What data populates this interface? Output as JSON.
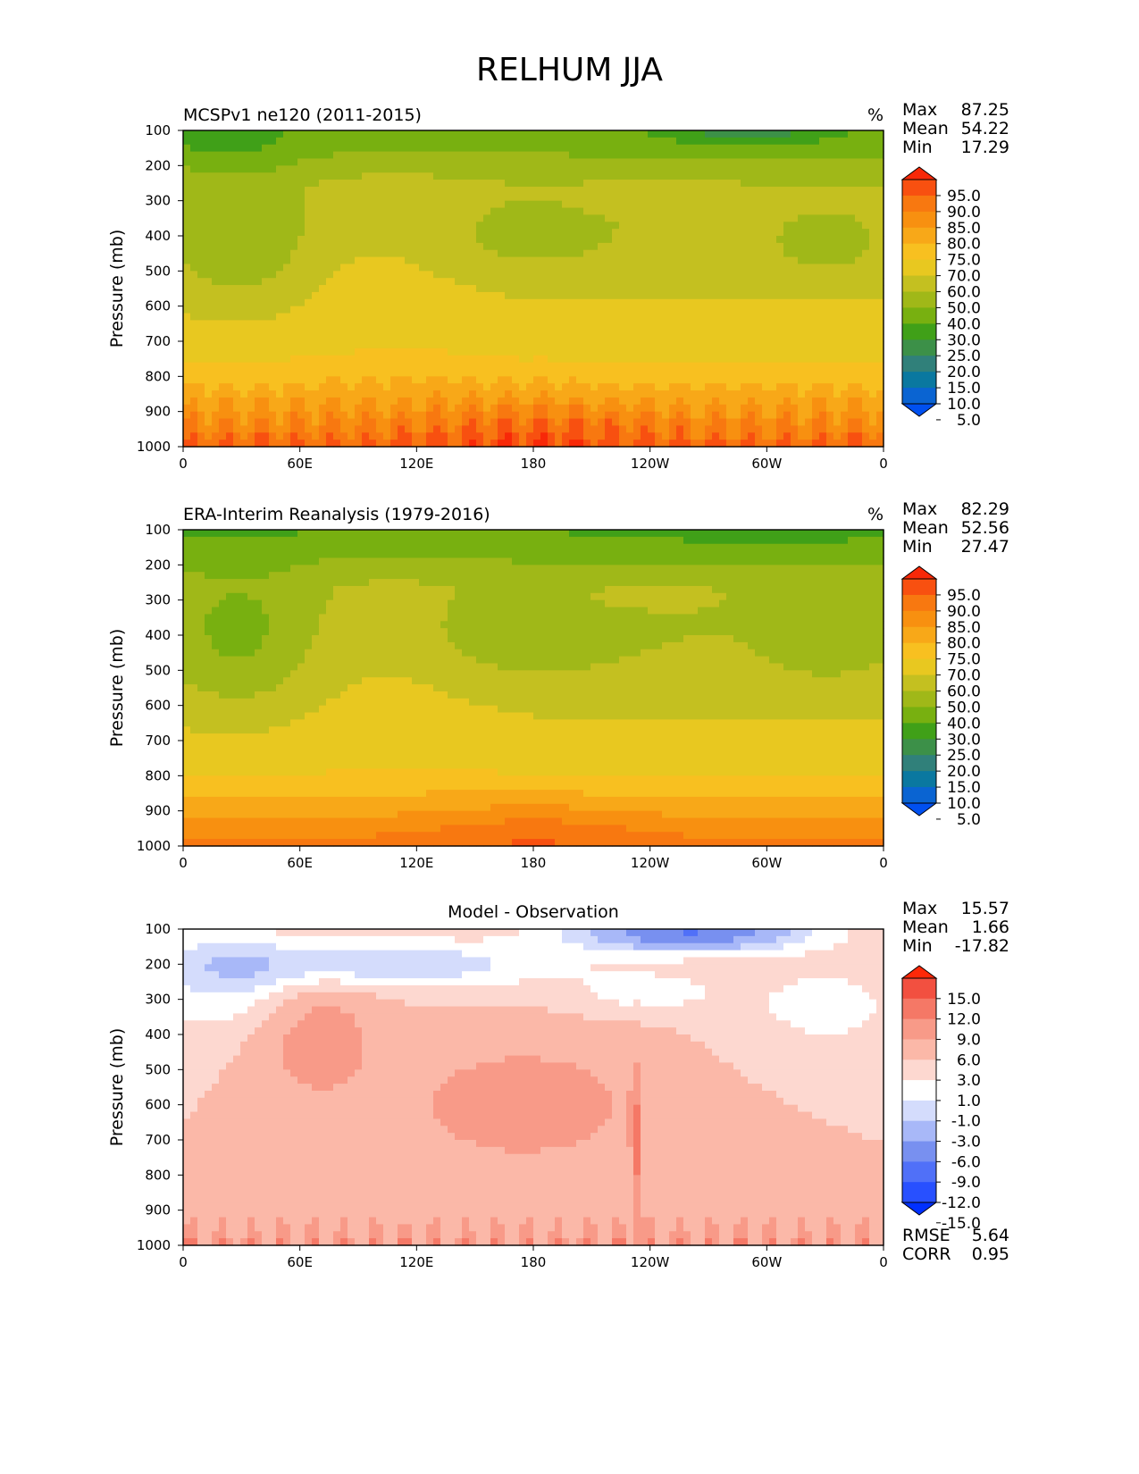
{
  "title": "RELHUM JJA",
  "chart_data": [
    {
      "type": "heatmap",
      "title": "MCSPv1 ne120 (2011-2015)",
      "units": "%",
      "ylabel": "Pressure (mb)",
      "xlabel": "",
      "x_ticks": [
        "0",
        "60E",
        "120E",
        "180",
        "120W",
        "60W",
        "0"
      ],
      "y_ticks": [
        "100",
        "200",
        "300",
        "400",
        "500",
        "600",
        "700",
        "800",
        "900",
        "1000"
      ],
      "ylim": [
        1000,
        100
      ],
      "xlim": [
        0,
        360
      ],
      "stats": {
        "Max": "87.25",
        "Mean": "54.22",
        "Min": "17.29"
      },
      "stat_labels": [
        "Max",
        "Mean",
        "Min"
      ],
      "colorbar_levels": [
        "95.0",
        "90.0",
        "85.0",
        "80.0",
        "75.0",
        "70.0",
        "60.0",
        "50.0",
        "40.0",
        "30.0",
        "25.0",
        "20.0",
        "15.0",
        "10.0",
        "5.0"
      ],
      "field": "model"
    },
    {
      "type": "heatmap",
      "title": "ERA-Interim Reanalysis (1979-2016)",
      "units": "%",
      "ylabel": "Pressure (mb)",
      "xlabel": "",
      "x_ticks": [
        "0",
        "60E",
        "120E",
        "180",
        "120W",
        "60W",
        "0"
      ],
      "y_ticks": [
        "100",
        "200",
        "300",
        "400",
        "500",
        "600",
        "700",
        "800",
        "900",
        "1000"
      ],
      "ylim": [
        1000,
        100
      ],
      "xlim": [
        0,
        360
      ],
      "stats": {
        "Max": "82.29",
        "Mean": "52.56",
        "Min": "27.47"
      },
      "stat_labels": [
        "Max",
        "Mean",
        "Min"
      ],
      "colorbar_levels": [
        "95.0",
        "90.0",
        "85.0",
        "80.0",
        "75.0",
        "70.0",
        "60.0",
        "50.0",
        "40.0",
        "30.0",
        "25.0",
        "20.0",
        "15.0",
        "10.0",
        "5.0"
      ],
      "field": "obs"
    },
    {
      "type": "heatmap",
      "title": "Model - Observation",
      "units": "",
      "ylabel": "Pressure (mb)",
      "xlabel": "",
      "x_ticks": [
        "0",
        "60E",
        "120E",
        "180",
        "120W",
        "60W",
        "0"
      ],
      "y_ticks": [
        "100",
        "200",
        "300",
        "400",
        "500",
        "600",
        "700",
        "800",
        "900",
        "1000"
      ],
      "ylim": [
        1000,
        100
      ],
      "xlim": [
        0,
        360
      ],
      "stats": {
        "Max": "15.57",
        "Mean": "1.66",
        "Min": "-17.82"
      },
      "stat_labels": [
        "Max",
        "Mean",
        "Min"
      ],
      "colorbar_levels": [
        "15.0",
        "12.0",
        "9.0",
        "6.0",
        "3.0",
        "1.0",
        "-1.0",
        "-3.0",
        "-6.0",
        "-9.0",
        "-12.0",
        "-15.0"
      ],
      "extra_stats": {
        "RMSE": "5.64",
        "CORR": "0.95"
      },
      "extra_labels": [
        "RMSE",
        "CORR"
      ],
      "field": "diff"
    }
  ],
  "colormaps": {
    "abs": [
      "#0050f0",
      "#0a64d2",
      "#0a78a0",
      "#30807a",
      "#3c9048",
      "#40a018",
      "#78b010",
      "#a0b818",
      "#c4c020",
      "#e8c820",
      "#f8c020",
      "#f8a818",
      "#f89010",
      "#f87810",
      "#f85010",
      "#f82808"
    ],
    "diff": [
      "#0030ff",
      "#2850ff",
      "#5070f8",
      "#7890f0",
      "#a8b8f8",
      "#d4dcfc",
      "#ffffff",
      "#fdd8d0",
      "#fbb8a8",
      "#f89a88",
      "#f57866",
      "#f25040",
      "#ff2808"
    ]
  }
}
